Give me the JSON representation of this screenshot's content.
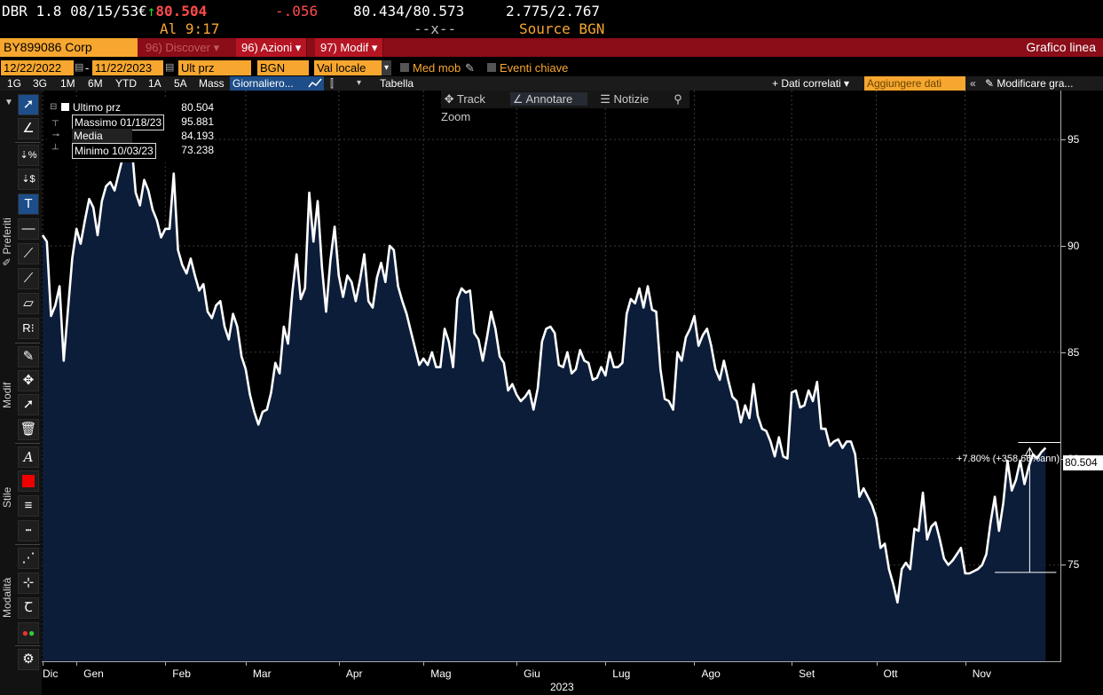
{
  "quote": {
    "ticker": "DBR 1.8 08/15/53",
    "currency": "€",
    "arrow": "↑",
    "last": "80.504",
    "change": "-.056",
    "bid_ask": "80.434/80.573",
    "yields": "2.775/2.767",
    "time_label": "Al 9:17",
    "dash_x": "--x--",
    "source": "Source BGN"
  },
  "commandbar": {
    "security": "BY899086 Corp",
    "discover": "96) Discover",
    "azioni": "96) Azioni",
    "modif": "97) Modif",
    "chart_title": "Grafico linea"
  },
  "options": {
    "start_date": "12/22/2022",
    "end_date": "11/22/2023",
    "dash": "-",
    "field": "Ult prz",
    "source": "BGN",
    "currency": "Val locale",
    "med_mob": "Med mob",
    "eventi": "Eventi chiave"
  },
  "periods": [
    "1G",
    "3G",
    "1M",
    "6M",
    "YTD",
    "1A",
    "5A",
    "Mass"
  ],
  "freq": "Giornaliero...",
  "tabella": "Tabella",
  "dati_correlati": "Dati correlati",
  "aggiungere": "Aggiungere dati",
  "modificare": "Modificare gra...",
  "toolbar_labels": {
    "preferiti": "Preferiti",
    "modif": "Modif",
    "stile": "Stile",
    "modalita": "Modalità"
  },
  "chart_tools": [
    "Track",
    "Annotare",
    "Notizie",
    "Zoom"
  ],
  "legend": [
    {
      "name": "Ultimo prz",
      "value": "80.504"
    },
    {
      "name": "Massimo 01/18/23",
      "value": "95.881"
    },
    {
      "name": "Media",
      "value": "84.193"
    },
    {
      "name": "Minimo 10/03/23",
      "value": "73.238"
    }
  ],
  "annotation": "+7.80% (+358.66%ann)",
  "last_label": "80.504",
  "chart_data": {
    "type": "area",
    "yticks": [
      75,
      80,
      85,
      90,
      95
    ],
    "ylim": [
      70.47,
      97.3
    ],
    "xlim": [
      0,
      234
    ],
    "months": [
      "Dic",
      "Gen",
      "Feb",
      "Mar",
      "Apr",
      "Mag",
      "Giu",
      "Lug",
      "Ago",
      "Set",
      "Ott",
      "Nov"
    ],
    "year": "2023",
    "series_color": "#ffffff",
    "fill_color": "#0d1f3c",
    "values": [
      90.5,
      90.2,
      86.7,
      87.2,
      88.1,
      84.6,
      87.0,
      89.4,
      90.8,
      90.1,
      91.2,
      92.2,
      91.8,
      90.5,
      92.1,
      92.8,
      93.0,
      92.6,
      93.4,
      94.2,
      95.881,
      94.8,
      92.5,
      91.9,
      93.1,
      92.6,
      91.7,
      91.2,
      90.4,
      90.8,
      90.8,
      93.4,
      89.8,
      89.1,
      88.7,
      89.4,
      88.6,
      87.9,
      88.2,
      86.9,
      86.6,
      87.2,
      87.4,
      86.2,
      85.6,
      86.8,
      86.2,
      84.8,
      84.2,
      83.0,
      82.2,
      81.6,
      82.2,
      82.3,
      83.1,
      84.5,
      84.0,
      86.2,
      85.4,
      87.8,
      89.6,
      87.5,
      88.0,
      92.5,
      90.2,
      92.1,
      89.0,
      86.9,
      89.3,
      90.9,
      88.6,
      87.6,
      88.6,
      88.3,
      87.4,
      88.4,
      89.6,
      87.4,
      87.1,
      88.5,
      89.2,
      88.3,
      90.0,
      89.8,
      88.1,
      87.4,
      86.8,
      86.0,
      85.2,
      84.4,
      84.7,
      84.4,
      85.0,
      84.3,
      84.3,
      86.1,
      85.5,
      84.3,
      87.5,
      88.0,
      87.8,
      87.9,
      85.9,
      85.6,
      84.6,
      85.7,
      86.9,
      86.1,
      84.8,
      84.5,
      83.2,
      83.5,
      83.0,
      82.7,
      82.9,
      83.2,
      82.3,
      83.3,
      85.5,
      86.1,
      86.2,
      85.9,
      84.4,
      84.3,
      85.0,
      84.0,
      84.2,
      85.1,
      84.6,
      84.5,
      83.7,
      83.8,
      84.3,
      83.9,
      85.0,
      84.3,
      84.3,
      84.5,
      86.8,
      87.5,
      87.3,
      88.0,
      87.1,
      88.1,
      87.0,
      86.9,
      84.2,
      82.8,
      82.7,
      82.3,
      85.0,
      84.6,
      85.7,
      86.1,
      86.7,
      85.3,
      85.8,
      86.1,
      85.3,
      84.2,
      83.7,
      84.6,
      83.7,
      82.9,
      82.7,
      81.7,
      82.5,
      81.9,
      83.5,
      82.0,
      81.4,
      81.3,
      80.8,
      80.1,
      81.0,
      80.1,
      80.0,
      83.1,
      83.2,
      82.4,
      82.5,
      83.2,
      82.7,
      83.6,
      81.4,
      81.4,
      80.6,
      80.8,
      80.9,
      80.5,
      80.8,
      80.8,
      80.2,
      78.2,
      78.6,
      78.2,
      77.8,
      77.2,
      75.8,
      76.0,
      74.8,
      74.1,
      73.238,
      74.8,
      75.1,
      74.8,
      76.7,
      76.6,
      78.4,
      76.2,
      76.8,
      77.0,
      76.2,
      75.3,
      75.0,
      75.2,
      75.5,
      75.8,
      74.6,
      74.6,
      74.7,
      74.8,
      75.0,
      75.5,
      77.0,
      78.2,
      76.6,
      77.9,
      79.9,
      78.5,
      79.0,
      79.9,
      78.8,
      79.6,
      80.2,
      80.0,
      80.3,
      80.504
    ]
  },
  "colors": {
    "amber": "#f7a72f",
    "cmdbar": "#8a0d18",
    "red": "#ff4a4a",
    "green": "#2cd12c",
    "selected": "#1d4e8a",
    "fill": "#0d1f3c"
  }
}
